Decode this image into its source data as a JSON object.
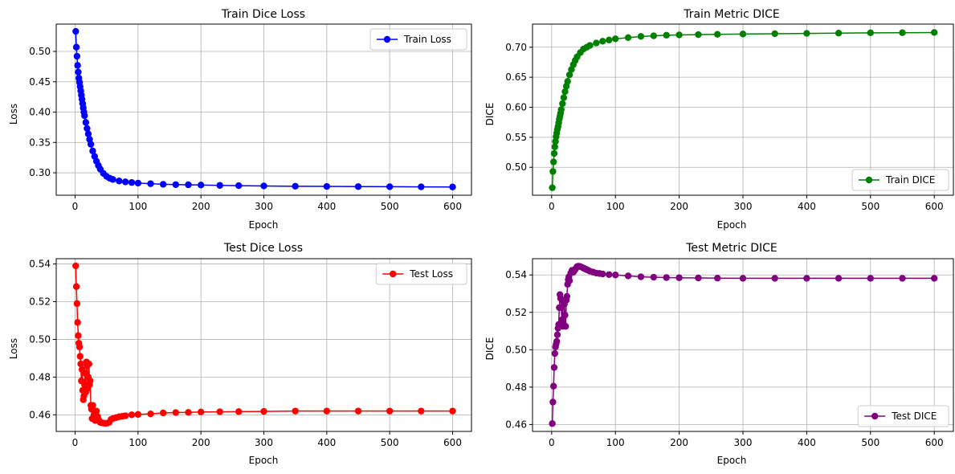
{
  "figure": {
    "background": "#ffffff"
  },
  "chart_data": [
    {
      "type": "line",
      "title": "Train Dice Loss",
      "xlabel": "Epoch",
      "ylabel": "Loss",
      "xlim": [
        -30,
        630
      ],
      "ylim": [
        0.263,
        0.545
      ],
      "xticks": [
        0,
        100,
        200,
        300,
        400,
        500,
        600
      ],
      "xtick_labels": [
        "0",
        "100",
        "200",
        "300",
        "400",
        "500",
        "600"
      ],
      "yticks": [
        0.3,
        0.35,
        0.4,
        0.45,
        0.5
      ],
      "ytick_labels": [
        "0.30",
        "0.35",
        "0.40",
        "0.45",
        "0.50"
      ],
      "grid": true,
      "legend_position": "top-right",
      "series": [
        {
          "name": "Train Loss",
          "color": "#0000ff",
          "marker": "circle",
          "x": [
            1,
            2,
            3,
            4,
            5,
            6,
            7,
            8,
            9,
            10,
            11,
            12,
            13,
            14,
            15,
            17,
            19,
            21,
            23,
            25,
            28,
            31,
            34,
            37,
            40,
            45,
            50,
            55,
            60,
            70,
            80,
            90,
            100,
            120,
            140,
            160,
            180,
            200,
            230,
            260,
            300,
            350,
            400,
            450,
            500,
            550,
            600
          ],
          "y": [
            0.533,
            0.507,
            0.492,
            0.477,
            0.466,
            0.456,
            0.449,
            0.442,
            0.435,
            0.428,
            0.421,
            0.414,
            0.407,
            0.4,
            0.394,
            0.383,
            0.373,
            0.364,
            0.355,
            0.347,
            0.336,
            0.327,
            0.319,
            0.312,
            0.306,
            0.299,
            0.294,
            0.291,
            0.289,
            0.2865,
            0.285,
            0.284,
            0.283,
            0.282,
            0.281,
            0.2805,
            0.2802,
            0.2798,
            0.2792,
            0.2788,
            0.2783,
            0.2778,
            0.2775,
            0.2772,
            0.277,
            0.2768,
            0.2766
          ]
        }
      ]
    },
    {
      "type": "line",
      "title": "Train Metric DICE",
      "xlabel": "Epoch",
      "ylabel": "DICE",
      "xlim": [
        -30,
        630
      ],
      "ylim": [
        0.4535,
        0.7385
      ],
      "xticks": [
        0,
        100,
        200,
        300,
        400,
        500,
        600
      ],
      "xtick_labels": [
        "0",
        "100",
        "200",
        "300",
        "400",
        "500",
        "600"
      ],
      "yticks": [
        0.5,
        0.55,
        0.6,
        0.65,
        0.7
      ],
      "ytick_labels": [
        "0.50",
        "0.55",
        "0.60",
        "0.65",
        "0.70"
      ],
      "grid": true,
      "legend_position": "bottom-right",
      "series": [
        {
          "name": "Train DICE",
          "color": "#008000",
          "marker": "circle",
          "x": [
            1,
            2,
            3,
            4,
            5,
            6,
            7,
            8,
            9,
            10,
            11,
            12,
            13,
            14,
            15,
            17,
            19,
            21,
            23,
            25,
            28,
            31,
            34,
            37,
            40,
            45,
            50,
            55,
            60,
            70,
            80,
            90,
            100,
            120,
            140,
            160,
            180,
            200,
            230,
            260,
            300,
            350,
            400,
            450,
            500,
            550,
            600
          ],
          "y": [
            0.466,
            0.493,
            0.509,
            0.523,
            0.534,
            0.543,
            0.551,
            0.557,
            0.563,
            0.568,
            0.574,
            0.58,
            0.585,
            0.59,
            0.596,
            0.606,
            0.616,
            0.626,
            0.635,
            0.643,
            0.654,
            0.663,
            0.671,
            0.678,
            0.684,
            0.691,
            0.697,
            0.7,
            0.703,
            0.707,
            0.71,
            0.712,
            0.714,
            0.716,
            0.718,
            0.719,
            0.72,
            0.7205,
            0.721,
            0.7215,
            0.722,
            0.7225,
            0.723,
            0.7235,
            0.724,
            0.7242,
            0.7245
          ]
        }
      ]
    },
    {
      "type": "line",
      "title": "Test Dice Loss",
      "xlabel": "Epoch",
      "ylabel": "Loss",
      "xlim": [
        -30,
        630
      ],
      "ylim": [
        0.4512,
        0.5428
      ],
      "xticks": [
        0,
        100,
        200,
        300,
        400,
        500,
        600
      ],
      "xtick_labels": [
        "0",
        "100",
        "200",
        "300",
        "400",
        "500",
        "600"
      ],
      "yticks": [
        0.46,
        0.48,
        0.5,
        0.52,
        0.54
      ],
      "ytick_labels": [
        "0.46",
        "0.48",
        "0.50",
        "0.52",
        "0.54"
      ],
      "grid": true,
      "legend_position": "top-right",
      "series": [
        {
          "name": "Test Loss",
          "color": "#ff0000",
          "marker": "circle",
          "x": [
            1,
            2,
            3,
            4,
            5,
            6,
            7,
            8,
            9,
            10,
            11,
            12,
            13,
            14,
            15,
            16,
            17,
            18,
            19,
            20,
            21,
            22,
            23,
            24,
            25,
            26,
            27,
            28,
            30,
            32,
            34,
            36,
            38,
            40,
            42,
            45,
            48,
            51,
            54,
            57,
            60,
            65,
            70,
            75,
            80,
            90,
            100,
            120,
            140,
            160,
            180,
            200,
            230,
            260,
            300,
            350,
            400,
            450,
            500,
            550,
            600
          ],
          "y": [
            0.539,
            0.528,
            0.519,
            0.509,
            0.502,
            0.498,
            0.496,
            0.491,
            0.487,
            0.478,
            0.484,
            0.473,
            0.468,
            0.47,
            0.476,
            0.482,
            0.472,
            0.488,
            0.486,
            0.474,
            0.48,
            0.487,
            0.476,
            0.478,
            0.465,
            0.463,
            0.458,
            0.465,
            0.46,
            0.457,
            0.462,
            0.459,
            0.457,
            0.456,
            0.4558,
            0.4556,
            0.4555,
            0.4556,
            0.456,
            0.4575,
            0.458,
            0.4585,
            0.459,
            0.4592,
            0.4595,
            0.46,
            0.4602,
            0.4605,
            0.461,
            0.4612,
            0.4613,
            0.4615,
            0.4616,
            0.4617,
            0.4618,
            0.462,
            0.462,
            0.462,
            0.462,
            0.462,
            0.462
          ]
        }
      ]
    },
    {
      "type": "line",
      "title": "Test Metric DICE",
      "xlabel": "Epoch",
      "ylabel": "DICE",
      "xlim": [
        -30,
        630
      ],
      "ylim": [
        0.4563,
        0.5487
      ],
      "xticks": [
        0,
        100,
        200,
        300,
        400,
        500,
        600
      ],
      "xtick_labels": [
        "0",
        "100",
        "200",
        "300",
        "400",
        "500",
        "600"
      ],
      "yticks": [
        0.46,
        0.48,
        0.5,
        0.52,
        0.54
      ],
      "ytick_labels": [
        "0.46",
        "0.48",
        "0.50",
        "0.52",
        "0.54"
      ],
      "grid": true,
      "legend_position": "bottom-right",
      "series": [
        {
          "name": "Test DICE",
          "color": "#800080",
          "marker": "circle",
          "x": [
            1,
            2,
            3,
            4,
            5,
            6,
            7,
            8,
            9,
            10,
            11,
            12,
            13,
            14,
            15,
            16,
            17,
            18,
            19,
            20,
            21,
            22,
            23,
            24,
            25,
            26,
            27,
            28,
            30,
            32,
            34,
            36,
            38,
            40,
            42,
            45,
            48,
            51,
            54,
            57,
            60,
            65,
            70,
            75,
            80,
            90,
            100,
            120,
            140,
            160,
            180,
            200,
            230,
            260,
            300,
            350,
            400,
            450,
            500,
            550,
            600
          ],
          "y": [
            0.4605,
            0.472,
            0.4805,
            0.4905,
            0.498,
            0.5015,
            0.503,
            0.5045,
            0.508,
            0.5115,
            0.5135,
            0.5225,
            0.5295,
            0.5275,
            0.5225,
            0.516,
            0.5265,
            0.5125,
            0.5135,
            0.5245,
            0.5185,
            0.5125,
            0.5265,
            0.5285,
            0.535,
            0.5375,
            0.539,
            0.537,
            0.541,
            0.5425,
            0.5415,
            0.5425,
            0.5435,
            0.5445,
            0.5447,
            0.5445,
            0.544,
            0.5435,
            0.543,
            0.5425,
            0.542,
            0.5415,
            0.541,
            0.5408,
            0.5405,
            0.5402,
            0.54,
            0.5395,
            0.539,
            0.5388,
            0.5386,
            0.5385,
            0.5384,
            0.5383,
            0.5382,
            0.5382,
            0.5382,
            0.5382,
            0.5382,
            0.5382,
            0.5382
          ]
        }
      ]
    }
  ]
}
